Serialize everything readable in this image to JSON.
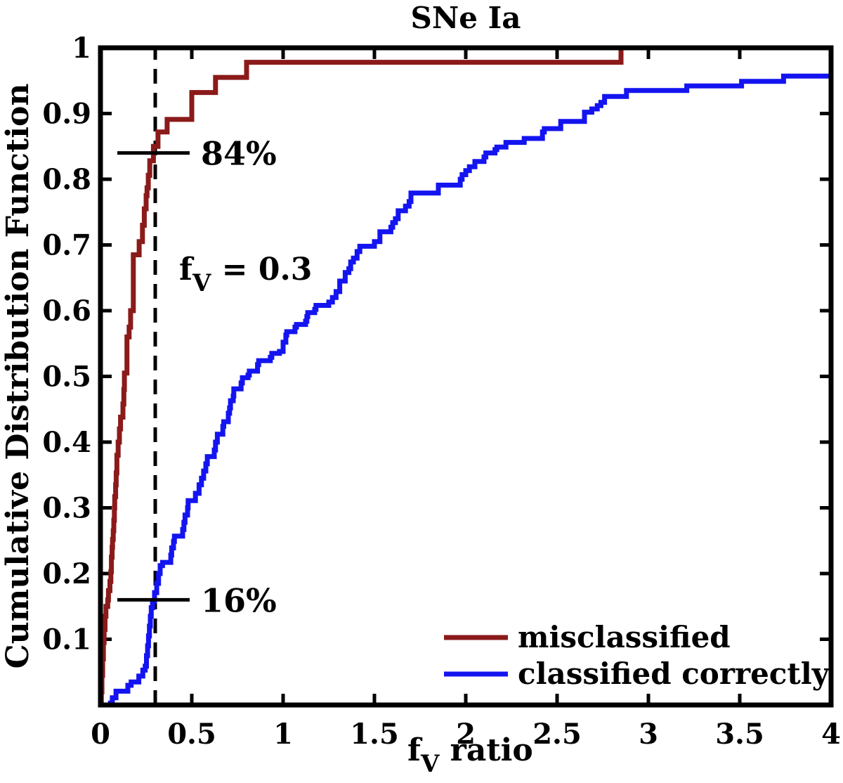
{
  "figure": {
    "title": "SNe Ia",
    "background": "#ffffff"
  },
  "axes": {
    "ylabel": "Cumulative Distribution Function",
    "xlabel_prefix": "f",
    "xlabel_sub": "V",
    "xlabel_suffix": " ratio",
    "x_ticks": [
      {
        "value": 0,
        "label": "0"
      },
      {
        "value": 0.5,
        "label": "0.5"
      },
      {
        "value": 1,
        "label": "1"
      },
      {
        "value": 1.5,
        "label": "1.5"
      },
      {
        "value": 2,
        "label": "2"
      },
      {
        "value": 2.5,
        "label": "2.5"
      },
      {
        "value": 3,
        "label": "3"
      },
      {
        "value": 3.5,
        "label": "3.5"
      },
      {
        "value": 4,
        "label": "4"
      }
    ],
    "y_ticks": [
      {
        "value": 0.1,
        "label": "0.1"
      },
      {
        "value": 0.2,
        "label": "0.2"
      },
      {
        "value": 0.3,
        "label": "0.3"
      },
      {
        "value": 0.4,
        "label": "0.4"
      },
      {
        "value": 0.5,
        "label": "0.5"
      },
      {
        "value": 0.6,
        "label": "0.6"
      },
      {
        "value": 0.7,
        "label": "0.7"
      },
      {
        "value": 0.8,
        "label": "0.8"
      },
      {
        "value": 0.9,
        "label": "0.9"
      },
      {
        "value": 1,
        "label": "1"
      }
    ]
  },
  "annotations": {
    "p84_label": "84%",
    "p84_value": 0.84,
    "p16_label": "16%",
    "p16_value": 0.16,
    "threshold_prefix": "f",
    "threshold_sub": "V",
    "threshold_suffix": " = 0.3",
    "threshold_x": 0.3,
    "line_color": "#000000"
  },
  "legend": {
    "items": [
      {
        "label": "misclassified",
        "color": "#8b1a1a"
      },
      {
        "label": "classified correctly",
        "color": "#1414f0"
      }
    ]
  },
  "chart_data": {
    "type": "line",
    "subtype": "step-cdf",
    "title": "SNe Ia",
    "xlabel": "f_V ratio",
    "ylabel": "Cumulative Distribution Function",
    "xlim": [
      0,
      4
    ],
    "ylim": [
      0,
      1
    ],
    "grid": false,
    "legend_position": "lower right",
    "vline_x": 0.3,
    "hline_values": [
      0.84,
      0.16
    ],
    "series": [
      {
        "name": "misclassified",
        "color": "#8b1a1a",
        "points": [
          [
            0.005,
            0.02
          ],
          [
            0.008,
            0.045
          ],
          [
            0.012,
            0.07
          ],
          [
            0.016,
            0.095
          ],
          [
            0.02,
            0.115
          ],
          [
            0.025,
            0.135
          ],
          [
            0.03,
            0.15
          ],
          [
            0.04,
            0.16
          ],
          [
            0.044,
            0.174
          ],
          [
            0.052,
            0.188
          ],
          [
            0.057,
            0.203
          ],
          [
            0.06,
            0.225
          ],
          [
            0.064,
            0.24
          ],
          [
            0.066,
            0.252
          ],
          [
            0.07,
            0.265
          ],
          [
            0.073,
            0.281
          ],
          [
            0.076,
            0.3
          ],
          [
            0.078,
            0.317
          ],
          [
            0.083,
            0.335
          ],
          [
            0.086,
            0.353
          ],
          [
            0.09,
            0.38
          ],
          [
            0.097,
            0.4
          ],
          [
            0.104,
            0.42
          ],
          [
            0.11,
            0.438
          ],
          [
            0.123,
            0.458
          ],
          [
            0.128,
            0.48
          ],
          [
            0.131,
            0.505
          ],
          [
            0.145,
            0.56
          ],
          [
            0.157,
            0.575
          ],
          [
            0.165,
            0.6
          ],
          [
            0.18,
            0.685
          ],
          [
            0.212,
            0.705
          ],
          [
            0.23,
            0.73
          ],
          [
            0.24,
            0.755
          ],
          [
            0.25,
            0.775
          ],
          [
            0.255,
            0.787
          ],
          [
            0.262,
            0.806
          ],
          [
            0.27,
            0.828
          ],
          [
            0.29,
            0.85
          ],
          [
            0.315,
            0.872
          ],
          [
            0.365,
            0.891
          ],
          [
            0.5,
            0.932
          ],
          [
            0.63,
            0.955
          ],
          [
            0.8,
            0.978
          ],
          [
            2.85,
            1.0
          ]
        ]
      },
      {
        "name": "classified correctly",
        "color": "#1414f0",
        "points": [
          [
            0.055,
            0.003
          ],
          [
            0.065,
            0.011
          ],
          [
            0.085,
            0.021
          ],
          [
            0.15,
            0.03
          ],
          [
            0.168,
            0.035
          ],
          [
            0.21,
            0.044
          ],
          [
            0.232,
            0.053
          ],
          [
            0.245,
            0.059
          ],
          [
            0.252,
            0.075
          ],
          [
            0.258,
            0.09
          ],
          [
            0.263,
            0.105
          ],
          [
            0.268,
            0.12
          ],
          [
            0.273,
            0.135
          ],
          [
            0.278,
            0.148
          ],
          [
            0.285,
            0.158
          ],
          [
            0.296,
            0.171
          ],
          [
            0.308,
            0.185
          ],
          [
            0.318,
            0.2
          ],
          [
            0.327,
            0.212
          ],
          [
            0.34,
            0.217
          ],
          [
            0.385,
            0.228
          ],
          [
            0.39,
            0.239
          ],
          [
            0.4,
            0.249
          ],
          [
            0.405,
            0.257
          ],
          [
            0.45,
            0.267
          ],
          [
            0.457,
            0.278
          ],
          [
            0.463,
            0.289
          ],
          [
            0.477,
            0.3
          ],
          [
            0.48,
            0.311
          ],
          [
            0.52,
            0.322
          ],
          [
            0.54,
            0.335
          ],
          [
            0.553,
            0.345
          ],
          [
            0.565,
            0.356
          ],
          [
            0.577,
            0.367
          ],
          [
            0.585,
            0.378
          ],
          [
            0.623,
            0.388
          ],
          [
            0.63,
            0.4
          ],
          [
            0.64,
            0.412
          ],
          [
            0.67,
            0.424
          ],
          [
            0.675,
            0.431
          ],
          [
            0.7,
            0.444
          ],
          [
            0.707,
            0.452
          ],
          [
            0.712,
            0.463
          ],
          [
            0.727,
            0.47
          ],
          [
            0.73,
            0.481
          ],
          [
            0.77,
            0.49
          ],
          [
            0.777,
            0.498
          ],
          [
            0.808,
            0.502
          ],
          [
            0.815,
            0.508
          ],
          [
            0.86,
            0.518
          ],
          [
            0.866,
            0.524
          ],
          [
            0.93,
            0.529
          ],
          [
            0.938,
            0.535
          ],
          [
            0.98,
            0.538
          ],
          [
            1.0,
            0.552
          ],
          [
            1.015,
            0.563
          ],
          [
            1.02,
            0.568
          ],
          [
            1.065,
            0.575
          ],
          [
            1.073,
            0.579
          ],
          [
            1.123,
            0.584
          ],
          [
            1.13,
            0.591
          ],
          [
            1.135,
            0.597
          ],
          [
            1.173,
            0.602
          ],
          [
            1.18,
            0.608
          ],
          [
            1.25,
            0.613
          ],
          [
            1.27,
            0.62
          ],
          [
            1.29,
            0.629
          ],
          [
            1.31,
            0.645
          ],
          [
            1.34,
            0.658
          ],
          [
            1.36,
            0.664
          ],
          [
            1.37,
            0.674
          ],
          [
            1.385,
            0.68
          ],
          [
            1.405,
            0.69
          ],
          [
            1.42,
            0.698
          ],
          [
            1.5,
            0.705
          ],
          [
            1.53,
            0.72
          ],
          [
            1.59,
            0.727
          ],
          [
            1.6,
            0.734
          ],
          [
            1.615,
            0.74
          ],
          [
            1.63,
            0.752
          ],
          [
            1.67,
            0.759
          ],
          [
            1.69,
            0.766
          ],
          [
            1.7,
            0.779
          ],
          [
            1.85,
            0.791
          ],
          [
            1.97,
            0.8
          ],
          [
            1.98,
            0.807
          ],
          [
            2.0,
            0.813
          ],
          [
            2.02,
            0.819
          ],
          [
            2.05,
            0.827
          ],
          [
            2.1,
            0.834
          ],
          [
            2.11,
            0.84
          ],
          [
            2.16,
            0.845
          ],
          [
            2.17,
            0.849
          ],
          [
            2.22,
            0.856
          ],
          [
            2.32,
            0.862
          ],
          [
            2.42,
            0.872
          ],
          [
            2.43,
            0.877
          ],
          [
            2.52,
            0.888
          ],
          [
            2.65,
            0.902
          ],
          [
            2.69,
            0.907
          ],
          [
            2.72,
            0.912
          ],
          [
            2.74,
            0.917
          ],
          [
            2.76,
            0.926
          ],
          [
            2.88,
            0.935
          ],
          [
            3.21,
            0.942
          ],
          [
            3.51,
            0.949
          ],
          [
            3.74,
            0.957
          ],
          [
            4.0,
            0.957
          ]
        ]
      }
    ]
  }
}
